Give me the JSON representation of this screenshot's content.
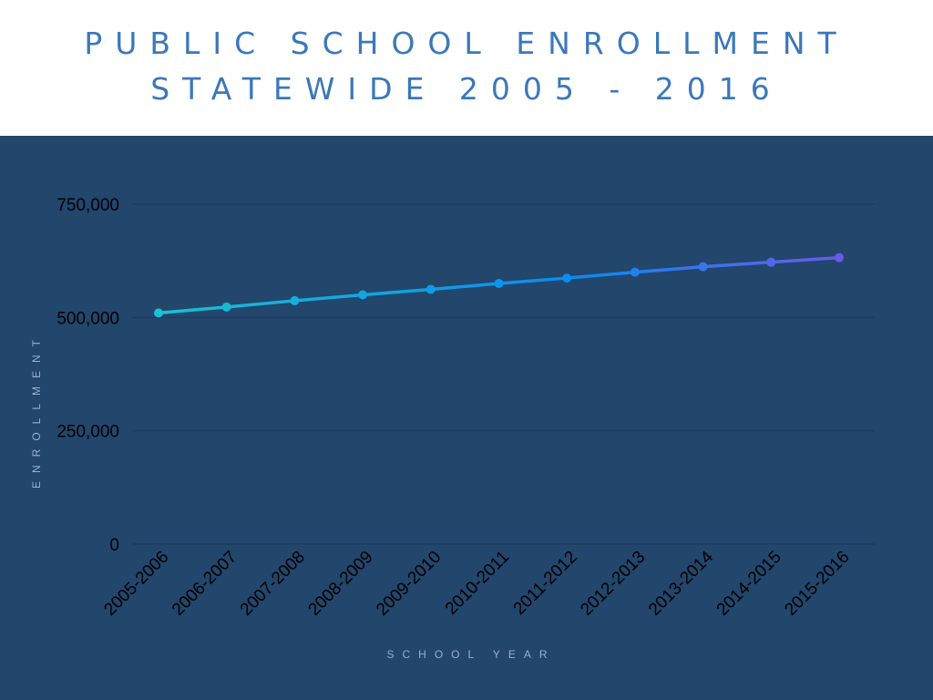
{
  "header": {
    "title_line1": "PUBLIC SCHOOL ENROLLMENT",
    "title_line2": "STATEWIDE 2005 - 2016"
  },
  "colors": {
    "title": "#3b78b8",
    "panel_bg": "#22466c",
    "gridline": "#1d3d5f",
    "line_start": "#1cc0d0",
    "line_mid": "#0a8cf0",
    "line_end": "#6a5ae8"
  },
  "chart_data": {
    "type": "line",
    "title": "PUBLIC SCHOOL ENROLLMENT STATEWIDE 2005 - 2016",
    "xlabel": "SCHOOL YEAR",
    "ylabel": "ENROLLMENT",
    "categories": [
      "2005-2006",
      "2006-2007",
      "2007-2008",
      "2008-2009",
      "2009-2010",
      "2010-2011",
      "2011-2012",
      "2012-2013",
      "2013-2014",
      "2014-2015",
      "2015-2016"
    ],
    "series": [
      {
        "name": "Enrollment",
        "values": [
          510000,
          523000,
          537000,
          550000,
          562000,
          575000,
          587000,
          600000,
          612000,
          622000,
          632000
        ]
      }
    ],
    "ylim": [
      0,
      750000
    ],
    "yticks": [
      0,
      250000,
      500000,
      750000
    ],
    "ytick_labels": [
      "0",
      "250,000",
      "500,000",
      "750,000"
    ],
    "grid": true,
    "legend": "none"
  }
}
